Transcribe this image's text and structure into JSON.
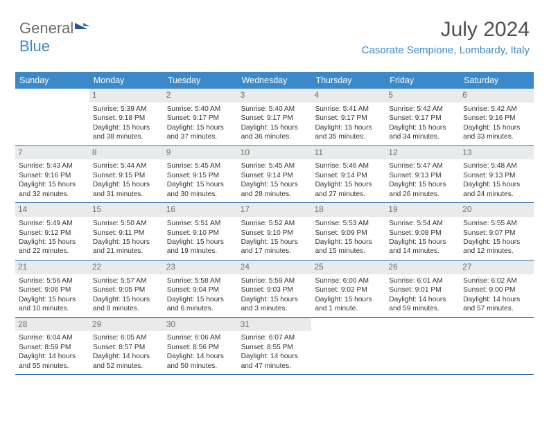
{
  "logo": {
    "part1": "General",
    "part2": "Blue"
  },
  "title": "July 2024",
  "location": "Casorate Sempione, Lombardy, Italy",
  "colors": {
    "header_bg": "#3b89c9",
    "header_text": "#ffffff",
    "daynum_bg": "#e9eaeb",
    "daynum_text": "#6f6f6f",
    "row_divider": "#2b6aa3",
    "body_text": "#333333",
    "location_text": "#3b89c9",
    "logo_gray": "#6b6b6b",
    "logo_blue": "#3b89c9"
  },
  "typography": {
    "title_fontsize": 30,
    "location_fontsize": 15,
    "dayheader_fontsize": 12.5,
    "daynum_fontsize": 12,
    "cell_fontsize": 10.2,
    "logo_fontsize": 22
  },
  "dayHeaders": [
    "Sunday",
    "Monday",
    "Tuesday",
    "Wednesday",
    "Thursday",
    "Friday",
    "Saturday"
  ],
  "weeks": [
    [
      {
        "empty": true
      },
      {
        "n": "1",
        "l1": "Sunrise: 5:39 AM",
        "l2": "Sunset: 9:18 PM",
        "l3": "Daylight: 15 hours",
        "l4": "and 38 minutes."
      },
      {
        "n": "2",
        "l1": "Sunrise: 5:40 AM",
        "l2": "Sunset: 9:17 PM",
        "l3": "Daylight: 15 hours",
        "l4": "and 37 minutes."
      },
      {
        "n": "3",
        "l1": "Sunrise: 5:40 AM",
        "l2": "Sunset: 9:17 PM",
        "l3": "Daylight: 15 hours",
        "l4": "and 36 minutes."
      },
      {
        "n": "4",
        "l1": "Sunrise: 5:41 AM",
        "l2": "Sunset: 9:17 PM",
        "l3": "Daylight: 15 hours",
        "l4": "and 35 minutes."
      },
      {
        "n": "5",
        "l1": "Sunrise: 5:42 AM",
        "l2": "Sunset: 9:17 PM",
        "l3": "Daylight: 15 hours",
        "l4": "and 34 minutes."
      },
      {
        "n": "6",
        "l1": "Sunrise: 5:42 AM",
        "l2": "Sunset: 9:16 PM",
        "l3": "Daylight: 15 hours",
        "l4": "and 33 minutes."
      }
    ],
    [
      {
        "n": "7",
        "l1": "Sunrise: 5:43 AM",
        "l2": "Sunset: 9:16 PM",
        "l3": "Daylight: 15 hours",
        "l4": "and 32 minutes."
      },
      {
        "n": "8",
        "l1": "Sunrise: 5:44 AM",
        "l2": "Sunset: 9:15 PM",
        "l3": "Daylight: 15 hours",
        "l4": "and 31 minutes."
      },
      {
        "n": "9",
        "l1": "Sunrise: 5:45 AM",
        "l2": "Sunset: 9:15 PM",
        "l3": "Daylight: 15 hours",
        "l4": "and 30 minutes."
      },
      {
        "n": "10",
        "l1": "Sunrise: 5:45 AM",
        "l2": "Sunset: 9:14 PM",
        "l3": "Daylight: 15 hours",
        "l4": "and 28 minutes."
      },
      {
        "n": "11",
        "l1": "Sunrise: 5:46 AM",
        "l2": "Sunset: 9:14 PM",
        "l3": "Daylight: 15 hours",
        "l4": "and 27 minutes."
      },
      {
        "n": "12",
        "l1": "Sunrise: 5:47 AM",
        "l2": "Sunset: 9:13 PM",
        "l3": "Daylight: 15 hours",
        "l4": "and 26 minutes."
      },
      {
        "n": "13",
        "l1": "Sunrise: 5:48 AM",
        "l2": "Sunset: 9:13 PM",
        "l3": "Daylight: 15 hours",
        "l4": "and 24 minutes."
      }
    ],
    [
      {
        "n": "14",
        "l1": "Sunrise: 5:49 AM",
        "l2": "Sunset: 9:12 PM",
        "l3": "Daylight: 15 hours",
        "l4": "and 22 minutes."
      },
      {
        "n": "15",
        "l1": "Sunrise: 5:50 AM",
        "l2": "Sunset: 9:11 PM",
        "l3": "Daylight: 15 hours",
        "l4": "and 21 minutes."
      },
      {
        "n": "16",
        "l1": "Sunrise: 5:51 AM",
        "l2": "Sunset: 9:10 PM",
        "l3": "Daylight: 15 hours",
        "l4": "and 19 minutes."
      },
      {
        "n": "17",
        "l1": "Sunrise: 5:52 AM",
        "l2": "Sunset: 9:10 PM",
        "l3": "Daylight: 15 hours",
        "l4": "and 17 minutes."
      },
      {
        "n": "18",
        "l1": "Sunrise: 5:53 AM",
        "l2": "Sunset: 9:09 PM",
        "l3": "Daylight: 15 hours",
        "l4": "and 15 minutes."
      },
      {
        "n": "19",
        "l1": "Sunrise: 5:54 AM",
        "l2": "Sunset: 9:08 PM",
        "l3": "Daylight: 15 hours",
        "l4": "and 14 minutes."
      },
      {
        "n": "20",
        "l1": "Sunrise: 5:55 AM",
        "l2": "Sunset: 9:07 PM",
        "l3": "Daylight: 15 hours",
        "l4": "and 12 minutes."
      }
    ],
    [
      {
        "n": "21",
        "l1": "Sunrise: 5:56 AM",
        "l2": "Sunset: 9:06 PM",
        "l3": "Daylight: 15 hours",
        "l4": "and 10 minutes."
      },
      {
        "n": "22",
        "l1": "Sunrise: 5:57 AM",
        "l2": "Sunset: 9:05 PM",
        "l3": "Daylight: 15 hours",
        "l4": "and 8 minutes."
      },
      {
        "n": "23",
        "l1": "Sunrise: 5:58 AM",
        "l2": "Sunset: 9:04 PM",
        "l3": "Daylight: 15 hours",
        "l4": "and 6 minutes."
      },
      {
        "n": "24",
        "l1": "Sunrise: 5:59 AM",
        "l2": "Sunset: 9:03 PM",
        "l3": "Daylight: 15 hours",
        "l4": "and 3 minutes."
      },
      {
        "n": "25",
        "l1": "Sunrise: 6:00 AM",
        "l2": "Sunset: 9:02 PM",
        "l3": "Daylight: 15 hours",
        "l4": "and 1 minute."
      },
      {
        "n": "26",
        "l1": "Sunrise: 6:01 AM",
        "l2": "Sunset: 9:01 PM",
        "l3": "Daylight: 14 hours",
        "l4": "and 59 minutes."
      },
      {
        "n": "27",
        "l1": "Sunrise: 6:02 AM",
        "l2": "Sunset: 9:00 PM",
        "l3": "Daylight: 14 hours",
        "l4": "and 57 minutes."
      }
    ],
    [
      {
        "n": "28",
        "l1": "Sunrise: 6:04 AM",
        "l2": "Sunset: 8:59 PM",
        "l3": "Daylight: 14 hours",
        "l4": "and 55 minutes."
      },
      {
        "n": "29",
        "l1": "Sunrise: 6:05 AM",
        "l2": "Sunset: 8:57 PM",
        "l3": "Daylight: 14 hours",
        "l4": "and 52 minutes."
      },
      {
        "n": "30",
        "l1": "Sunrise: 6:06 AM",
        "l2": "Sunset: 8:56 PM",
        "l3": "Daylight: 14 hours",
        "l4": "and 50 minutes."
      },
      {
        "n": "31",
        "l1": "Sunrise: 6:07 AM",
        "l2": "Sunset: 8:55 PM",
        "l3": "Daylight: 14 hours",
        "l4": "and 47 minutes."
      },
      {
        "empty": true
      },
      {
        "empty": true
      },
      {
        "empty": true
      }
    ]
  ]
}
